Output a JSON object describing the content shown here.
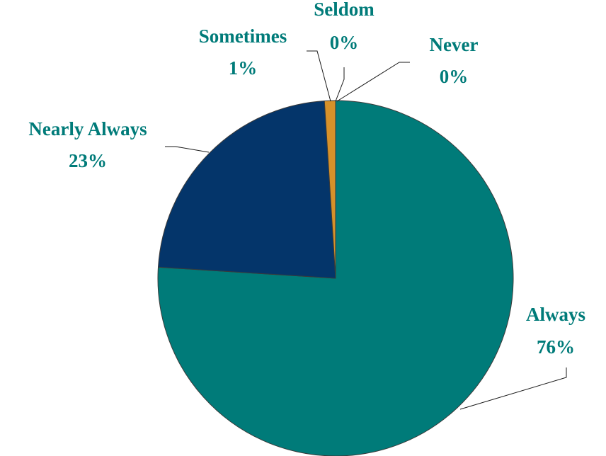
{
  "chart_data": {
    "type": "pie",
    "title": "",
    "start_angle_deg": 90,
    "direction": "clockwise",
    "label_color": "#007B79",
    "legend": "none",
    "slices": [
      {
        "label": "Always",
        "value": 76,
        "value_label": "76%",
        "color": "#007B79"
      },
      {
        "label": "Nearly Always",
        "value": 23,
        "value_label": "23%",
        "color": "#04356A"
      },
      {
        "label": "Sometimes",
        "value": 1,
        "value_label": "1%",
        "color": "#D6912A"
      },
      {
        "label": "Seldom",
        "value": 0,
        "value_label": "0%",
        "color": "#6D8F3A"
      },
      {
        "label": "Never",
        "value": 0,
        "value_label": "0%",
        "color": "#7A4E8B"
      }
    ]
  }
}
